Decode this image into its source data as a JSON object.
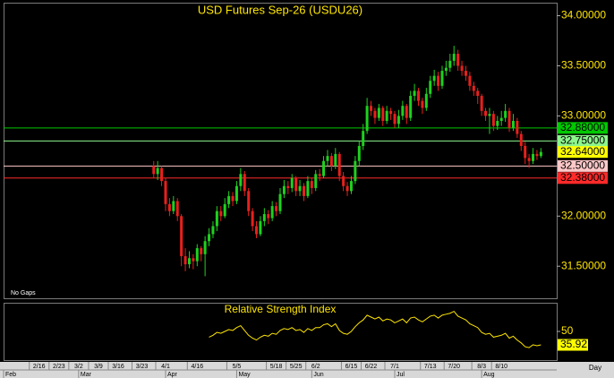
{
  "chart_data": {
    "type": "candlestick",
    "title": "USD Futures Sep-26 (USDU26)",
    "note": "No Gaps",
    "x_axis_label": "Day",
    "xlim": [
      0,
      140
    ],
    "xticks": [
      {
        "value": 9,
        "label": "2/16"
      },
      {
        "value": 14,
        "label": "2/23"
      },
      {
        "value": 19,
        "label": "3/2"
      },
      {
        "value": 24,
        "label": "3/9"
      },
      {
        "value": 29,
        "label": "3/16"
      },
      {
        "value": 35,
        "label": "3/23"
      },
      {
        "value": 41,
        "label": "4/1"
      },
      {
        "value": 49,
        "label": "4/16"
      },
      {
        "value": 59,
        "label": "5/5"
      },
      {
        "value": 69,
        "label": "5/18"
      },
      {
        "value": 74,
        "label": "5/25"
      },
      {
        "value": 79,
        "label": "6/2"
      },
      {
        "value": 88,
        "label": "6/15"
      },
      {
        "value": 93,
        "label": "6/22"
      },
      {
        "value": 99,
        "label": "7/1"
      },
      {
        "value": 108,
        "label": "7/13"
      },
      {
        "value": 114,
        "label": "7/20"
      },
      {
        "value": 121,
        "label": "8/3"
      },
      {
        "value": 126,
        "label": "8/10"
      }
    ],
    "month_ticks": [
      {
        "value": 0,
        "label": "Feb"
      },
      {
        "value": 19,
        "label": "Mar"
      },
      {
        "value": 41,
        "label": "Apr"
      },
      {
        "value": 59,
        "label": "May"
      },
      {
        "value": 78,
        "label": "Jun"
      },
      {
        "value": 99,
        "label": "Jul"
      },
      {
        "value": 121,
        "label": "Aug"
      }
    ],
    "ylim": [
      31.18,
      34.13
    ],
    "yticks": [
      {
        "value": 31.5,
        "label": "31.50000"
      },
      {
        "value": 32,
        "label": "32.00000"
      },
      {
        "value": 32.5,
        "label": "32.50000"
      },
      {
        "value": 33,
        "label": "33.00000"
      },
      {
        "value": 33.5,
        "label": "33.50000"
      },
      {
        "value": 34,
        "label": "34.00000"
      }
    ],
    "up_color": "#1fd01f",
    "down_color": "#e8201c",
    "levels": [
      {
        "value": 32.88,
        "label": "32.88000",
        "color": "#00c800"
      },
      {
        "value": 32.75,
        "label": "32.75000",
        "color": "#8cf58c"
      },
      {
        "value": 32.5,
        "label": "32.50000",
        "color": "#ffc8c8"
      },
      {
        "value": 32.38,
        "label": "32.38000",
        "color": "#ff2a2a"
      }
    ],
    "last_price": {
      "value": 32.64,
      "label": "32.64000",
      "color": "#ffff00"
    },
    "x": [
      38,
      39,
      40,
      41,
      42,
      43,
      44,
      45,
      46,
      47,
      48,
      49,
      50,
      51,
      52,
      53,
      54,
      55,
      56,
      57,
      58,
      59,
      60,
      61,
      62,
      63,
      64,
      65,
      66,
      67,
      68,
      69,
      70,
      71,
      72,
      73,
      74,
      75,
      76,
      77,
      78,
      79,
      80,
      81,
      82,
      83,
      84,
      85,
      86,
      87,
      88,
      89,
      90,
      91,
      92,
      93,
      94,
      95,
      96,
      97,
      98,
      99,
      100,
      101,
      102,
      103,
      104,
      105,
      106,
      107,
      108,
      109,
      110,
      111,
      112,
      113,
      114,
      115,
      116,
      117,
      118,
      119,
      120,
      121,
      122,
      123,
      124,
      125,
      126,
      127,
      128,
      129,
      130,
      131,
      132,
      133,
      134,
      135,
      136
    ],
    "open": [
      32.5,
      32.42,
      32.48,
      32.35,
      32.12,
      32.05,
      32.15,
      32.0,
      31.6,
      31.52,
      31.58,
      31.55,
      31.68,
      31.62,
      31.75,
      31.82,
      31.9,
      32.05,
      32.0,
      32.12,
      32.2,
      32.15,
      32.3,
      32.42,
      32.25,
      32.05,
      31.9,
      31.82,
      31.95,
      32.02,
      31.98,
      32.1,
      32.05,
      32.22,
      32.3,
      32.28,
      32.38,
      32.25,
      32.3,
      32.2,
      32.35,
      32.28,
      32.42,
      32.4,
      32.55,
      32.6,
      32.5,
      32.62,
      32.4,
      32.3,
      32.25,
      32.35,
      32.55,
      32.7,
      32.85,
      33.1,
      33.05,
      32.98,
      33.08,
      32.95,
      33.05,
      33.02,
      32.92,
      33.0,
      33.1,
      32.98,
      33.2,
      33.25,
      33.15,
      33.08,
      33.22,
      33.35,
      33.4,
      33.3,
      33.45,
      33.48,
      33.55,
      33.62,
      33.5,
      33.45,
      33.4,
      33.3,
      33.25,
      33.2,
      33.05,
      33.0,
      33.02,
      32.9,
      32.95,
      32.98,
      33.05,
      32.88,
      32.95,
      32.82,
      32.7,
      32.58,
      32.55,
      32.62,
      32.6
    ],
    "high": [
      32.55,
      32.55,
      32.5,
      32.38,
      32.18,
      32.2,
      32.18,
      32.02,
      31.68,
      31.65,
      31.62,
      31.72,
      31.7,
      31.8,
      31.88,
      31.95,
      32.1,
      32.1,
      32.18,
      32.25,
      32.24,
      32.35,
      32.48,
      32.45,
      32.28,
      32.08,
      31.95,
      32.0,
      32.08,
      32.06,
      32.15,
      32.14,
      32.28,
      32.36,
      32.35,
      32.42,
      32.4,
      32.36,
      32.33,
      32.4,
      32.38,
      32.46,
      32.47,
      32.6,
      32.66,
      32.63,
      32.68,
      32.64,
      32.44,
      32.34,
      32.4,
      32.6,
      32.75,
      32.92,
      33.18,
      33.15,
      33.08,
      33.12,
      33.1,
      33.1,
      33.08,
      33.05,
      33.06,
      33.15,
      33.12,
      33.25,
      33.32,
      33.28,
      33.18,
      33.28,
      33.4,
      33.46,
      33.44,
      33.5,
      33.55,
      33.62,
      33.7,
      33.66,
      33.55,
      33.5,
      33.44,
      33.34,
      33.28,
      33.22,
      33.08,
      33.08,
      33.05,
      33.0,
      33.05,
      33.12,
      33.08,
      33.02,
      32.98,
      32.85,
      32.74,
      32.62,
      32.68,
      32.66,
      32.68
    ],
    "low": [
      32.38,
      32.36,
      32.3,
      32.05,
      32.0,
      32.02,
      31.95,
      31.5,
      31.45,
      31.48,
      31.47,
      31.5,
      31.55,
      31.4,
      31.7,
      31.78,
      31.85,
      31.95,
      31.98,
      32.08,
      32.1,
      32.12,
      32.25,
      32.2,
      32.0,
      31.85,
      31.78,
      31.8,
      31.9,
      31.92,
      31.95,
      32.0,
      32.02,
      32.18,
      32.22,
      32.24,
      32.2,
      32.2,
      32.15,
      32.18,
      32.22,
      32.25,
      32.35,
      32.38,
      32.5,
      32.45,
      32.47,
      32.35,
      32.25,
      32.2,
      32.22,
      32.32,
      32.5,
      32.66,
      32.82,
      33.0,
      32.92,
      32.95,
      32.9,
      32.92,
      32.96,
      32.88,
      32.88,
      32.96,
      32.92,
      32.95,
      33.15,
      33.1,
      33.02,
      33.05,
      33.18,
      33.3,
      33.25,
      33.27,
      33.4,
      33.44,
      33.5,
      33.45,
      33.4,
      33.35,
      33.25,
      33.2,
      33.12,
      33.0,
      32.95,
      32.82,
      32.85,
      32.86,
      32.9,
      32.94,
      32.84,
      32.85,
      32.78,
      32.65,
      32.52,
      32.48,
      32.52,
      32.56,
      32.58
    ],
    "close": [
      32.42,
      32.48,
      32.35,
      32.12,
      32.05,
      32.15,
      32.0,
      31.6,
      31.52,
      31.58,
      31.55,
      31.68,
      31.62,
      31.75,
      31.82,
      31.9,
      32.05,
      32.0,
      32.12,
      32.2,
      32.15,
      32.3,
      32.42,
      32.25,
      32.05,
      31.9,
      31.82,
      31.95,
      32.02,
      31.98,
      32.1,
      32.05,
      32.22,
      32.3,
      32.28,
      32.38,
      32.25,
      32.3,
      32.2,
      32.35,
      32.28,
      32.42,
      32.4,
      32.55,
      32.6,
      32.5,
      32.62,
      32.4,
      32.3,
      32.25,
      32.35,
      32.55,
      32.7,
      32.85,
      33.1,
      33.05,
      32.98,
      33.08,
      32.95,
      33.05,
      33.02,
      32.92,
      33.0,
      33.1,
      32.98,
      33.2,
      33.25,
      33.15,
      33.08,
      33.22,
      33.35,
      33.4,
      33.3,
      33.45,
      33.48,
      33.55,
      33.62,
      33.5,
      33.45,
      33.4,
      33.3,
      33.25,
      33.2,
      33.05,
      33.0,
      33.02,
      32.9,
      32.95,
      32.98,
      33.05,
      32.88,
      32.95,
      32.82,
      32.7,
      32.58,
      32.55,
      32.62,
      32.6,
      32.64
    ],
    "rsi": {
      "name": "Relative Strength Index",
      "color": "#ffe600",
      "ylim": [
        20,
        80
      ],
      "yticks": [
        50
      ],
      "values": [
        null,
        null,
        null,
        null,
        null,
        null,
        null,
        null,
        null,
        null,
        null,
        null,
        null,
        null,
        44,
        46,
        49,
        48,
        50,
        52,
        51,
        54,
        56,
        51,
        46,
        43,
        41,
        44,
        46,
        45,
        48,
        47,
        51,
        53,
        52,
        54,
        51,
        52,
        49,
        53,
        51,
        54,
        54,
        57,
        58,
        55,
        58,
        51,
        48,
        47,
        50,
        55,
        59,
        62,
        67,
        65,
        63,
        65,
        61,
        63,
        62,
        59,
        61,
        63,
        59,
        64,
        65,
        62,
        60,
        63,
        66,
        67,
        64,
        67,
        68,
        69,
        71,
        66,
        64,
        62,
        58,
        56,
        54,
        49,
        47,
        48,
        44,
        45,
        46,
        48,
        43,
        45,
        41,
        38,
        34,
        33,
        36,
        35,
        35.92
      ],
      "last_label": "35.92"
    }
  }
}
